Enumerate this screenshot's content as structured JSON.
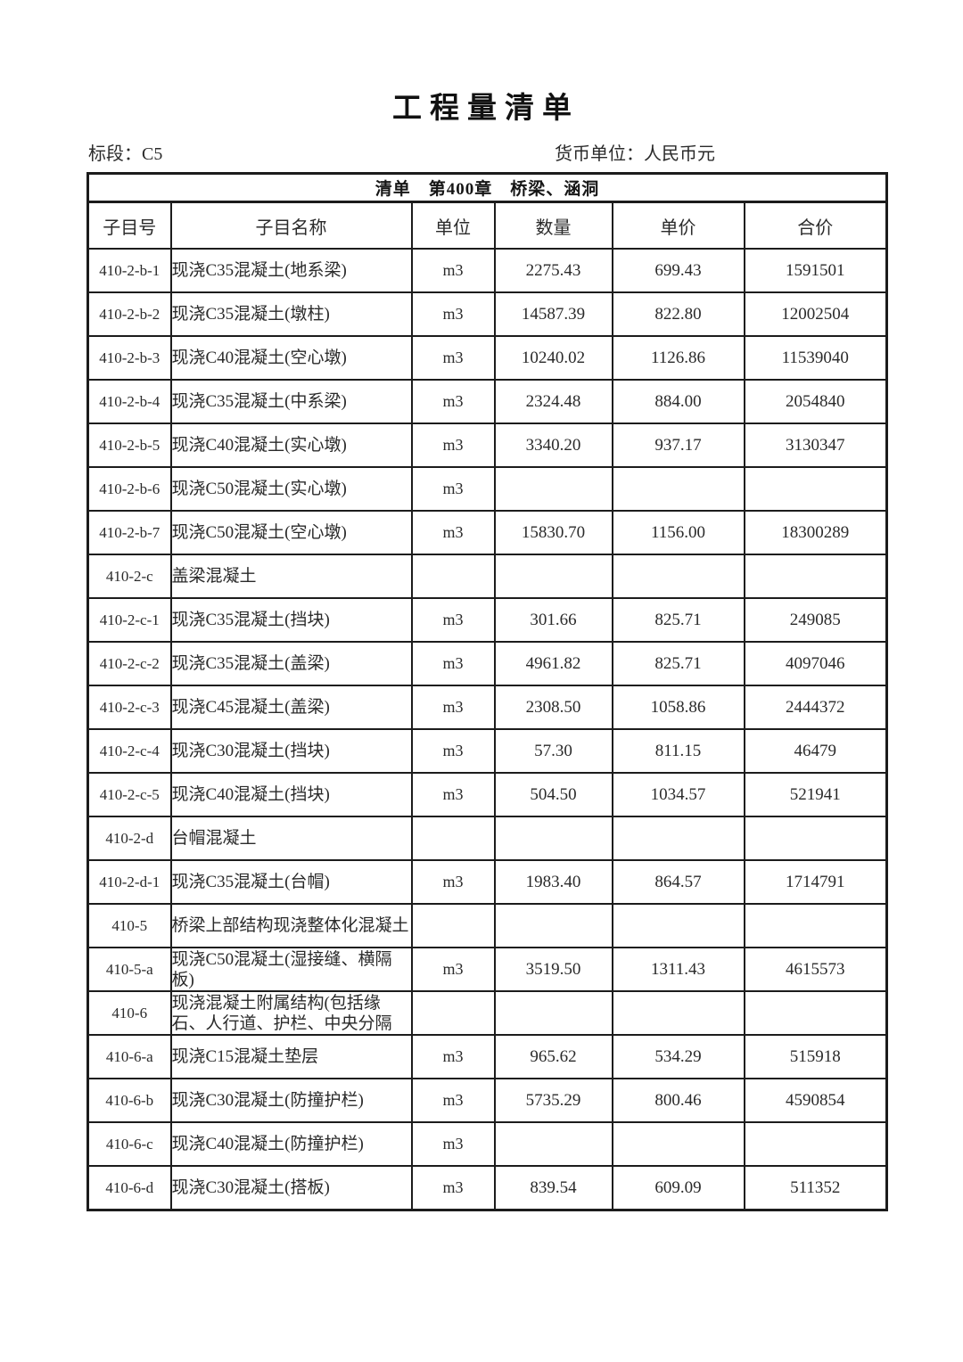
{
  "page": {
    "title": "工程量清单",
    "section_label": "标段：C5",
    "currency_label": "货币单位：人民币元"
  },
  "table": {
    "banner": "清单　第400章　桥梁、涵洞",
    "columns": [
      "子目号",
      "子目名称",
      "单位",
      "数量",
      "单价",
      "合价"
    ],
    "rows": [
      {
        "id": "410-2-b-1",
        "name": "现浇C35混凝土(地系梁)",
        "unit": "m3",
        "qty": "2275.43",
        "price": "699.43",
        "total": "1591501"
      },
      {
        "id": "410-2-b-2",
        "name": "现浇C35混凝土(墩柱)",
        "unit": "m3",
        "qty": "14587.39",
        "price": "822.80",
        "total": "12002504"
      },
      {
        "id": "410-2-b-3",
        "name": "现浇C40混凝土(空心墩)",
        "unit": "m3",
        "qty": "10240.02",
        "price": "1126.86",
        "total": "11539040"
      },
      {
        "id": "410-2-b-4",
        "name": "现浇C35混凝土(中系梁)",
        "unit": "m3",
        "qty": "2324.48",
        "price": "884.00",
        "total": "2054840"
      },
      {
        "id": "410-2-b-5",
        "name": "现浇C40混凝土(实心墩)",
        "unit": "m3",
        "qty": "3340.20",
        "price": "937.17",
        "total": "3130347"
      },
      {
        "id": "410-2-b-6",
        "name": "现浇C50混凝土(实心墩)",
        "unit": "m3",
        "qty": "",
        "price": "",
        "total": ""
      },
      {
        "id": "410-2-b-7",
        "name": "现浇C50混凝土(空心墩)",
        "unit": "m3",
        "qty": "15830.70",
        "price": "1156.00",
        "total": "18300289"
      },
      {
        "id": "410-2-c",
        "name": "盖梁混凝土",
        "unit": "",
        "qty": "",
        "price": "",
        "total": ""
      },
      {
        "id": "410-2-c-1",
        "name": "现浇C35混凝土(挡块)",
        "unit": "m3",
        "qty": "301.66",
        "price": "825.71",
        "total": "249085"
      },
      {
        "id": "410-2-c-2",
        "name": "现浇C35混凝土(盖梁)",
        "unit": "m3",
        "qty": "4961.82",
        "price": "825.71",
        "total": "4097046"
      },
      {
        "id": "410-2-c-3",
        "name": "现浇C45混凝土(盖梁)",
        "unit": "m3",
        "qty": "2308.50",
        "price": "1058.86",
        "total": "2444372"
      },
      {
        "id": "410-2-c-4",
        "name": "现浇C30混凝土(挡块)",
        "unit": "m3",
        "qty": "57.30",
        "price": "811.15",
        "total": "46479"
      },
      {
        "id": "410-2-c-5",
        "name": "现浇C40混凝土(挡块)",
        "unit": "m3",
        "qty": "504.50",
        "price": "1034.57",
        "total": "521941"
      },
      {
        "id": "410-2-d",
        "name": "台帽混凝土",
        "unit": "",
        "qty": "",
        "price": "",
        "total": ""
      },
      {
        "id": "410-2-d-1",
        "name": "现浇C35混凝土(台帽)",
        "unit": "m3",
        "qty": "1983.40",
        "price": "864.57",
        "total": "1714791"
      },
      {
        "id": "410-5",
        "name": "桥梁上部结构现浇整体化混凝土",
        "unit": "",
        "qty": "",
        "price": "",
        "total": ""
      },
      {
        "id": "410-5-a",
        "name": "现浇C50混凝土(湿接缝、横隔板)",
        "unit": "m3",
        "qty": "3519.50",
        "price": "1311.43",
        "total": "4615573"
      },
      {
        "id": "410-6",
        "name": "现浇混凝土附属结构(包括缘石、人行道、护栏、中央分隔",
        "unit": "",
        "qty": "",
        "price": "",
        "total": ""
      },
      {
        "id": "410-6-a",
        "name": "现浇C15混凝土垫层",
        "unit": "m3",
        "qty": "965.62",
        "price": "534.29",
        "total": "515918"
      },
      {
        "id": "410-6-b",
        "name": "现浇C30混凝土(防撞护栏)",
        "unit": "m3",
        "qty": "5735.29",
        "price": "800.46",
        "total": "4590854"
      },
      {
        "id": "410-6-c",
        "name": "现浇C40混凝土(防撞护栏)",
        "unit": "m3",
        "qty": "",
        "price": "",
        "total": ""
      },
      {
        "id": "410-6-d",
        "name": "现浇C30混凝土(搭板)",
        "unit": "m3",
        "qty": "839.54",
        "price": "609.09",
        "total": "511352"
      }
    ]
  }
}
